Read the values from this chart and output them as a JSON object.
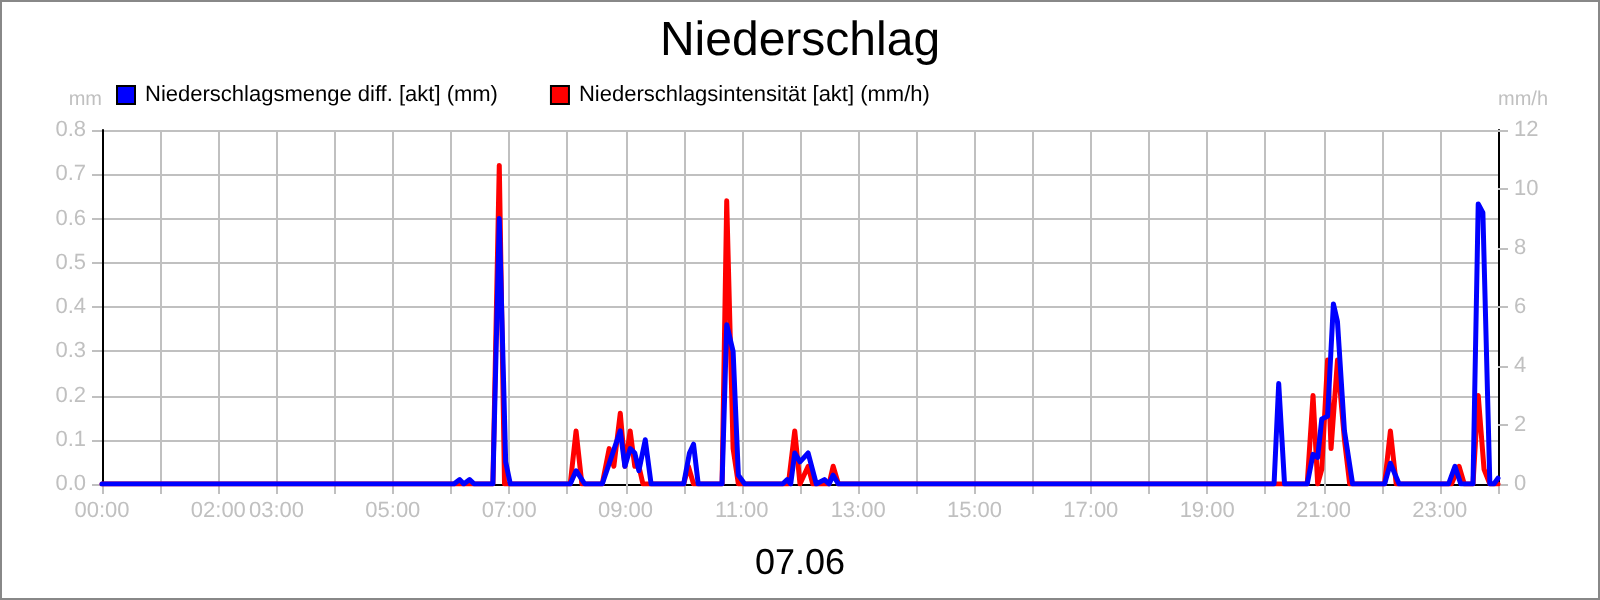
{
  "chart_data": {
    "type": "line",
    "title": "Niederschlag",
    "xlabel": "07.06",
    "ylabel": "mm",
    "y2label": "mm/h",
    "xlim": [
      0,
      24
    ],
    "xticks": [
      {
        "value": 0,
        "label": "00:00"
      },
      {
        "value": 1,
        "label": null
      },
      {
        "value": 2,
        "label": "02:00"
      },
      {
        "value": 3,
        "label": "03:00"
      },
      {
        "value": 4,
        "label": null
      },
      {
        "value": 5,
        "label": "05:00"
      },
      {
        "value": 6,
        "label": null
      },
      {
        "value": 7,
        "label": "07:00"
      },
      {
        "value": 8,
        "label": null
      },
      {
        "value": 9,
        "label": "09:00"
      },
      {
        "value": 10,
        "label": null
      },
      {
        "value": 11,
        "label": "11:00"
      },
      {
        "value": 12,
        "label": null
      },
      {
        "value": 13,
        "label": "13:00"
      },
      {
        "value": 14,
        "label": null
      },
      {
        "value": 15,
        "label": "15:00"
      },
      {
        "value": 16,
        "label": null
      },
      {
        "value": 17,
        "label": "17:00"
      },
      {
        "value": 18,
        "label": null
      },
      {
        "value": 19,
        "label": "19:00"
      },
      {
        "value": 20,
        "label": null
      },
      {
        "value": 21,
        "label": "21:00"
      },
      {
        "value": 22,
        "label": null
      },
      {
        "value": 23,
        "label": "23:00"
      },
      {
        "value": 24,
        "label": null
      }
    ],
    "ylim": [
      0,
      0.8
    ],
    "yticks": [
      {
        "value": 0,
        "label": "0.0"
      },
      0.1,
      0.2,
      0.3,
      0.4,
      0.5,
      0.6,
      0.7,
      0.8
    ],
    "y2lim": [
      0,
      12
    ],
    "y2ticks": [
      0,
      2,
      4,
      6,
      8,
      10,
      12
    ],
    "grid": true,
    "legend": "top left",
    "marker": "none",
    "line_style": "solid",
    "series": [
      {
        "name": "Niederschlagsmenge diff. [akt] (mm)",
        "color": "#0000ff",
        "x": [
          0,
          6.05,
          6.15,
          6.22,
          6.32,
          6.4,
          6.72,
          6.83,
          6.94,
          7.02,
          8.05,
          8.15,
          8.3,
          8.6,
          8.91,
          8.99,
          9.08,
          9.16,
          9.23,
          9.34,
          9.44,
          10.0,
          10.1,
          10.17,
          10.25,
          10.66,
          10.74,
          10.85,
          10.94,
          11.05,
          11.7,
          11.78,
          11.84,
          11.91,
          12.0,
          12.14,
          12.28,
          12.42,
          12.5,
          12.57,
          12.66,
          20.15,
          20.23,
          20.33,
          20.72,
          20.82,
          20.9,
          20.97,
          21.07,
          21.17,
          21.24,
          21.36,
          21.5,
          22.05,
          22.15,
          22.3,
          23.15,
          23.26,
          23.36,
          23.57,
          23.66,
          23.74,
          23.86,
          23.93,
          24
        ],
        "values": [
          0,
          0,
          0.01,
          0,
          0.01,
          0,
          0,
          0.6,
          0.05,
          0,
          0,
          0.03,
          0,
          0,
          0.12,
          0.04,
          0.08,
          0.07,
          0.03,
          0.1,
          0,
          0,
          0.07,
          0.09,
          0,
          0,
          0.36,
          0.3,
          0.02,
          0,
          0,
          0.01,
          0,
          0.07,
          0.05,
          0.07,
          0,
          0.01,
          0,
          0.02,
          0,
          0,
          0.227,
          0,
          0,
          0.067,
          0.06,
          0.147,
          0.153,
          0.407,
          0.367,
          0.12,
          0,
          0,
          0.047,
          0,
          0,
          0.04,
          0,
          0,
          0.633,
          0.613,
          0,
          0,
          0.013
        ]
      },
      {
        "name": "Niederschlagsintensität [akt] (mm/h)",
        "color": "#ff0000",
        "axis": "y2",
        "x": [
          0,
          6.72,
          6.83,
          6.92,
          8.05,
          8.15,
          8.25,
          8.6,
          8.72,
          8.8,
          8.91,
          8.99,
          9.08,
          9.16,
          9.23,
          9.3,
          10.0,
          10.08,
          10.17,
          10.66,
          10.74,
          10.85,
          10.94,
          11.8,
          11.91,
          12.0,
          12.14,
          12.22,
          12.5,
          12.57,
          12.66,
          20.72,
          20.82,
          20.9,
          20.97,
          21.07,
          21.13,
          21.24,
          21.36,
          21.45,
          22.05,
          22.15,
          22.25,
          23.2,
          23.33,
          23.42,
          23.57,
          23.66,
          23.76,
          23.86,
          24
        ],
        "values": [
          0,
          0,
          10.8,
          0,
          0,
          1.8,
          0,
          0,
          1.2,
          0.6,
          2.4,
          0.6,
          1.8,
          0.6,
          0.6,
          0,
          0,
          0.6,
          0,
          0,
          9.6,
          1.2,
          0,
          0,
          1.8,
          0,
          0.6,
          0,
          0,
          0.6,
          0,
          0,
          3.0,
          0,
          0.5,
          4.2,
          1.2,
          4.2,
          1.5,
          0,
          0,
          1.8,
          0,
          0,
          0.6,
          0,
          0,
          3.0,
          0.5,
          0,
          0
        ]
      }
    ]
  }
}
